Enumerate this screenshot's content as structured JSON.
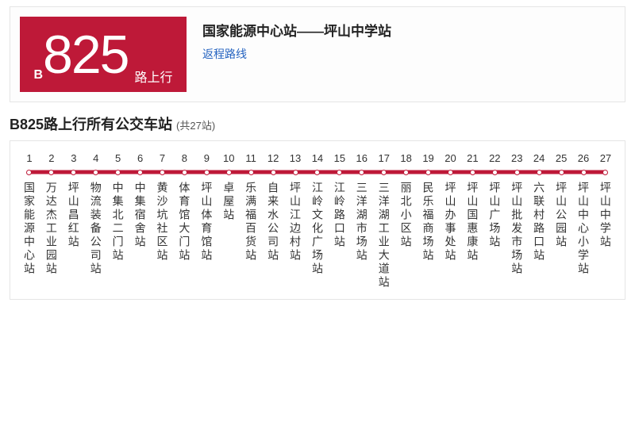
{
  "colors": {
    "brand": "#be1938",
    "link": "#2563c0",
    "text": "#333333"
  },
  "header": {
    "prefix": "B",
    "number": "825",
    "suffix": "路上行",
    "description": "国家能源中心站——坪山中学站",
    "return_link": "返程路线"
  },
  "section": {
    "title": "B825路上行所有公交车站",
    "count_label": "(共27站)"
  },
  "route": {
    "line_color": "#be1938",
    "dot_fill": "#ffffff",
    "stations": [
      "国家能源中心站",
      "万达杰工业园站",
      "坪山昌红站",
      "物流装备公司站",
      "中集北二门站",
      "中集宿舍站",
      "黄沙坑社区站",
      "体育馆大门站",
      "坪山体育馆站",
      "卓屋站",
      "乐满福百货站",
      "自来水公司站",
      "坪山江边村站",
      "江岭文化广场站",
      "江岭路口站",
      "三洋湖市场站",
      "三洋湖工业大道站",
      "丽北小区站",
      "民乐福商场站",
      "坪山办事处站",
      "坪山国惠康站",
      "坪山广场站",
      "坪山批发市场站",
      "六联村路口站",
      "坪山公园站",
      "坪山中心小学站",
      "坪山中学站"
    ]
  }
}
